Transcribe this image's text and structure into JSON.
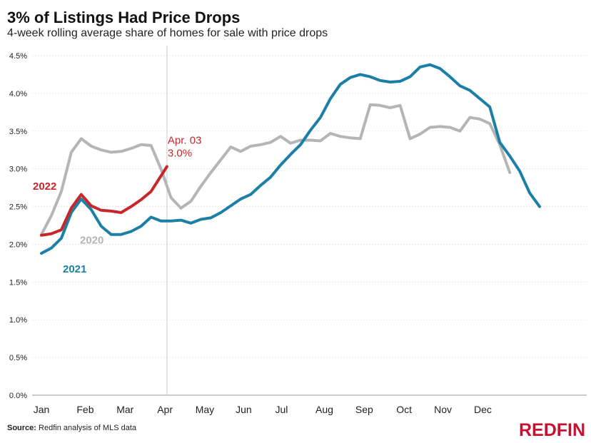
{
  "title": "3% of Listings Had Price Drops",
  "subtitle": "4-week rolling average share of homes for sale with price drops",
  "source_label": "Source:",
  "source_text": "Redfin analysis of MLS data",
  "logo_text": "REDFIN",
  "colors": {
    "s2020": "#b5b5b5",
    "s2021": "#1b7fa6",
    "s2022": "#c8262b",
    "grid": "#e6e6e6",
    "marker": "#cccccc"
  },
  "chart_data": {
    "type": "line",
    "title": "3% of Listings Had Price Drops",
    "subtitle": "4-week rolling average share of homes for sale with price drops",
    "xlabel": "",
    "ylabel": "",
    "ylim": [
      0,
      4.5
    ],
    "y_ticks": [
      0,
      0.5,
      1.0,
      1.5,
      2.0,
      2.5,
      3.0,
      3.5,
      4.0,
      4.5
    ],
    "y_tick_labels": [
      "0.0%",
      "0.5%",
      "1.0%",
      "1.5%",
      "2.0%",
      "2.5%",
      "3.0%",
      "3.5%",
      "4.0%",
      "4.5%"
    ],
    "x_unit": "week of year",
    "xlim": [
      1,
      52
    ],
    "month_labels": [
      "Jan",
      "Feb",
      "Mar",
      "Apr",
      "May",
      "Jun",
      "Jul",
      "Aug",
      "Sep",
      "Oct",
      "Nov",
      "Dec"
    ],
    "month_positions": [
      1,
      5.4,
      9.4,
      13.4,
      17.4,
      21.3,
      25.1,
      29.4,
      33.4,
      37.4,
      41.3,
      45.3
    ],
    "grid": true,
    "vertical_marker": {
      "week": 13.6,
      "label": "Apr. 03"
    },
    "series": [
      {
        "name": "2020",
        "label": "2020",
        "weeks": [
          1,
          2,
          3,
          4,
          5,
          6,
          7,
          8,
          9,
          10,
          11,
          12,
          13,
          14,
          15,
          16,
          17,
          18,
          19,
          20,
          21,
          22,
          23,
          24,
          25,
          26,
          27,
          28,
          29,
          30,
          31,
          32,
          33,
          34,
          35,
          36,
          37,
          38,
          39,
          40,
          41,
          42,
          43,
          44,
          45,
          46,
          47,
          48
        ],
        "values": [
          2.13,
          2.38,
          2.7,
          3.22,
          3.4,
          3.3,
          3.25,
          3.22,
          3.23,
          3.27,
          3.32,
          3.31,
          3.0,
          2.62,
          2.48,
          2.57,
          2.77,
          2.95,
          3.12,
          3.29,
          3.23,
          3.3,
          3.32,
          3.35,
          3.43,
          3.34,
          3.38,
          3.38,
          3.37,
          3.47,
          3.43,
          3.41,
          3.4,
          3.85,
          3.84,
          3.81,
          3.84,
          3.4,
          3.46,
          3.55,
          3.56,
          3.55,
          3.5,
          3.68,
          3.66,
          3.6,
          3.32,
          2.95
        ]
      },
      {
        "name": "2021",
        "label": "2021",
        "weeks": [
          1,
          2,
          3,
          4,
          5,
          6,
          7,
          8,
          9,
          10,
          11,
          12,
          13,
          14,
          15,
          16,
          17,
          18,
          19,
          20,
          21,
          22,
          23,
          24,
          25,
          26,
          27,
          28,
          29,
          30,
          31,
          32,
          33,
          34,
          35,
          36,
          37,
          38,
          39,
          40,
          41,
          42,
          43,
          44,
          45,
          46,
          47,
          48,
          49,
          50,
          51
        ],
        "values": [
          1.88,
          1.95,
          2.08,
          2.42,
          2.6,
          2.46,
          2.24,
          2.13,
          2.13,
          2.17,
          2.24,
          2.36,
          2.31,
          2.31,
          2.32,
          2.28,
          2.33,
          2.35,
          2.42,
          2.51,
          2.6,
          2.66,
          2.78,
          2.89,
          3.05,
          3.19,
          3.32,
          3.51,
          3.68,
          3.93,
          4.12,
          4.21,
          4.25,
          4.22,
          4.17,
          4.15,
          4.16,
          4.22,
          4.35,
          4.38,
          4.33,
          4.22,
          4.1,
          4.04,
          3.93,
          3.82,
          3.35,
          3.17,
          2.97,
          2.68,
          2.5
        ]
      },
      {
        "name": "2022",
        "label": "2022",
        "weeks": [
          1,
          2,
          3,
          4,
          5,
          6,
          7,
          8,
          9,
          10,
          11,
          12,
          13.6
        ],
        "values": [
          2.12,
          2.14,
          2.19,
          2.48,
          2.66,
          2.51,
          2.45,
          2.44,
          2.42,
          2.5,
          2.59,
          2.7,
          3.03
        ]
      }
    ],
    "annotations": [
      {
        "text": "2022",
        "series": "2022"
      },
      {
        "text": "2020",
        "series": "2020"
      },
      {
        "text": "2021",
        "series": "2021"
      },
      {
        "text": "Apr. 03",
        "series": "2022"
      },
      {
        "text": "3.0%",
        "series": "2022"
      }
    ]
  }
}
